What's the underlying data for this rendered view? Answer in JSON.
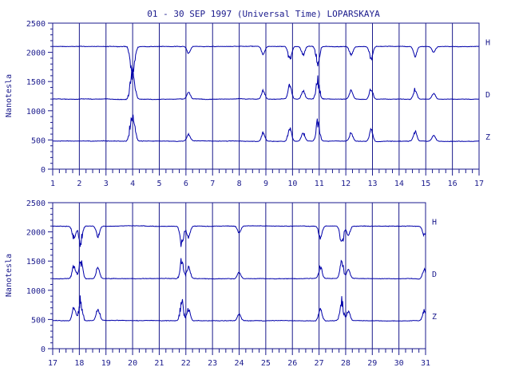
{
  "title": "01 - 30 SEP 1997 (Universal Time) LOPARSKAYA",
  "colors": {
    "ink": "#1a1a8c",
    "trace": "#0000aa",
    "background": "#ffffff"
  },
  "chart_data": [
    {
      "type": "line",
      "ylabel": "Nanotesla",
      "ylim": [
        0,
        2500
      ],
      "yticks": [
        "0",
        "500",
        "1000",
        "1500",
        "2000",
        "2500"
      ],
      "xlim": [
        1,
        17
      ],
      "xticks": [
        "1",
        "2",
        "3",
        "4",
        "5",
        "6",
        "7",
        "8",
        "9",
        "10",
        "11",
        "12",
        "13",
        "14",
        "15",
        "16",
        "17"
      ],
      "grid": "vertical daily lines",
      "series": [
        {
          "name": "H",
          "baseline": 2100
        },
        {
          "name": "D",
          "baseline": 1200
        },
        {
          "name": "Z",
          "baseline": 480
        }
      ],
      "disturbances": [
        {
          "x": 3.95,
          "amp": 1.0
        },
        {
          "x": 4.05,
          "amp": 0.8
        },
        {
          "x": 6.1,
          "amp": 0.35
        },
        {
          "x": 8.9,
          "amp": 0.45
        },
        {
          "x": 9.9,
          "amp": 0.7
        },
        {
          "x": 10.4,
          "amp": 0.45
        },
        {
          "x": 10.95,
          "amp": 1.0
        },
        {
          "x": 12.2,
          "amp": 0.45
        },
        {
          "x": 12.95,
          "amp": 0.6
        },
        {
          "x": 14.6,
          "amp": 0.5
        },
        {
          "x": 15.3,
          "amp": 0.3
        }
      ]
    },
    {
      "type": "line",
      "ylabel": "Nanotesla",
      "ylim": [
        0,
        2500
      ],
      "yticks": [
        "0",
        "500",
        "1000",
        "1500",
        "2000",
        "2500"
      ],
      "xlim": [
        17,
        31
      ],
      "xticks": [
        "17",
        "18",
        "19",
        "20",
        "21",
        "22",
        "23",
        "24",
        "25",
        "26",
        "27",
        "28",
        "29",
        "30",
        "31"
      ],
      "grid": "vertical daily lines",
      "series": [
        {
          "name": "H",
          "baseline": 2100
        },
        {
          "name": "D",
          "baseline": 1200
        },
        {
          "name": "Z",
          "baseline": 480
        }
      ],
      "disturbances": [
        {
          "x": 17.8,
          "amp": 0.7
        },
        {
          "x": 18.05,
          "amp": 1.0
        },
        {
          "x": 18.7,
          "amp": 0.6
        },
        {
          "x": 21.85,
          "amp": 1.0
        },
        {
          "x": 22.1,
          "amp": 0.6
        },
        {
          "x": 24.0,
          "amp": 0.35
        },
        {
          "x": 27.05,
          "amp": 0.6
        },
        {
          "x": 27.85,
          "amp": 1.0
        },
        {
          "x": 28.1,
          "amp": 0.5
        },
        {
          "x": 30.95,
          "amp": 0.5
        }
      ]
    }
  ]
}
